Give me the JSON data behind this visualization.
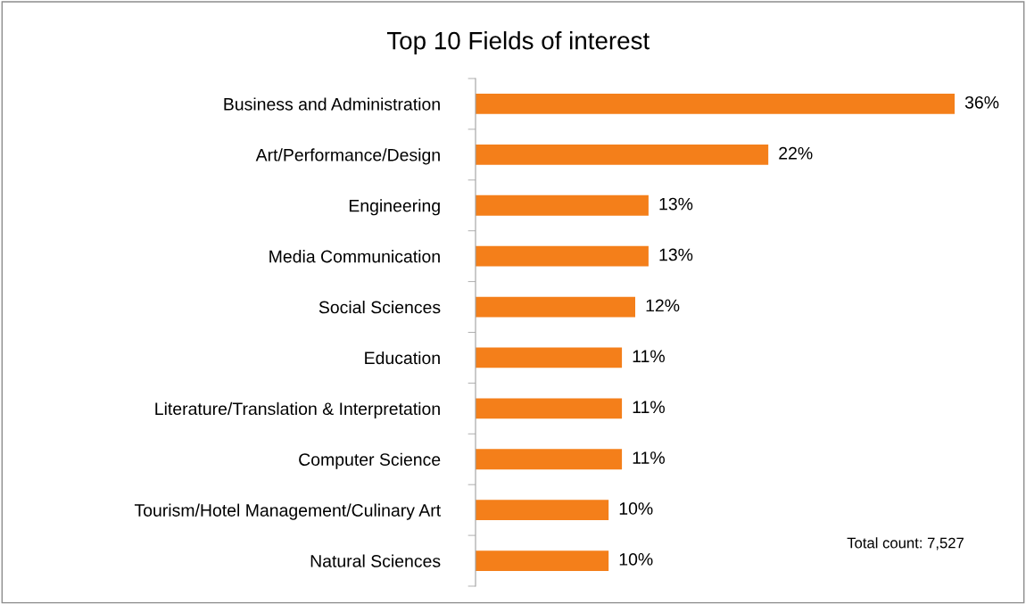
{
  "chart_data": {
    "type": "bar",
    "orientation": "horizontal",
    "title": "Top 10 Fields of interest",
    "categories": [
      "Business and Administration",
      "Art/Performance/Design",
      "Engineering",
      "Media Communication",
      "Social Sciences",
      "Education",
      "Literature/Translation & Interpretation",
      "Computer Science",
      "Tourism/Hotel Management/Culinary Art",
      "Natural Sciences"
    ],
    "values": [
      36,
      22,
      13,
      13,
      12,
      11,
      11,
      11,
      10,
      10
    ],
    "value_labels": [
      "36%",
      "22%",
      "13%",
      "13%",
      "12%",
      "11%",
      "11%",
      "11%",
      "10%",
      "10%"
    ],
    "color": "#f47f1a",
    "annotations": [
      "Total count: 7,527"
    ],
    "grid": false,
    "legend": false
  }
}
